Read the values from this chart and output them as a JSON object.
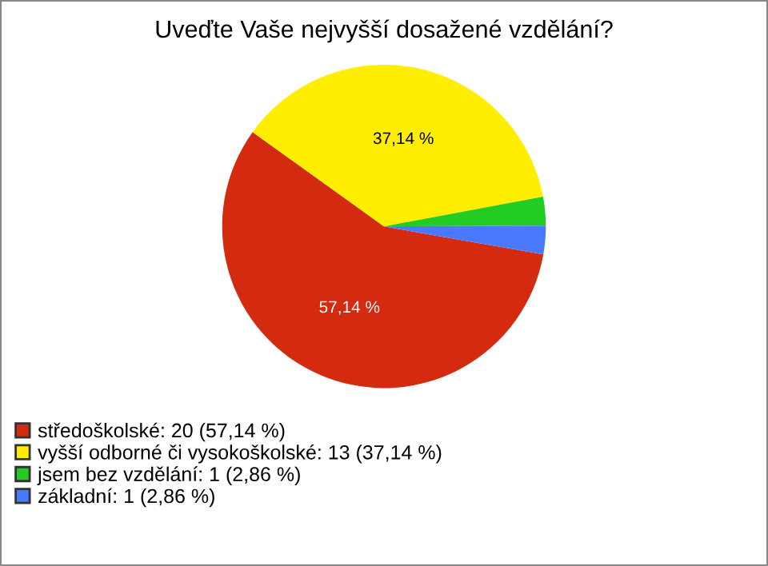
{
  "chart_data": {
    "type": "pie",
    "title": "Uveďte Vaše nejvyšší dosažené vzdělání?",
    "categories": [
      "středoškolské: 20 (57,14 %)",
      "vyšší odborné či vysokoškolské: 13 (37,14 %)",
      "jsem bez vzdělání: 1 (2,86 %)",
      "základní: 1 (2,86 %)"
    ],
    "values": [
      57.14,
      37.14,
      2.86,
      2.86
    ],
    "colors": [
      "#d42a10",
      "#ffee00",
      "#22cc22",
      "#4a78ff"
    ],
    "value_labels": [
      "57,14 %",
      "37,14 %",
      null,
      null
    ],
    "legend": "bottom left"
  }
}
